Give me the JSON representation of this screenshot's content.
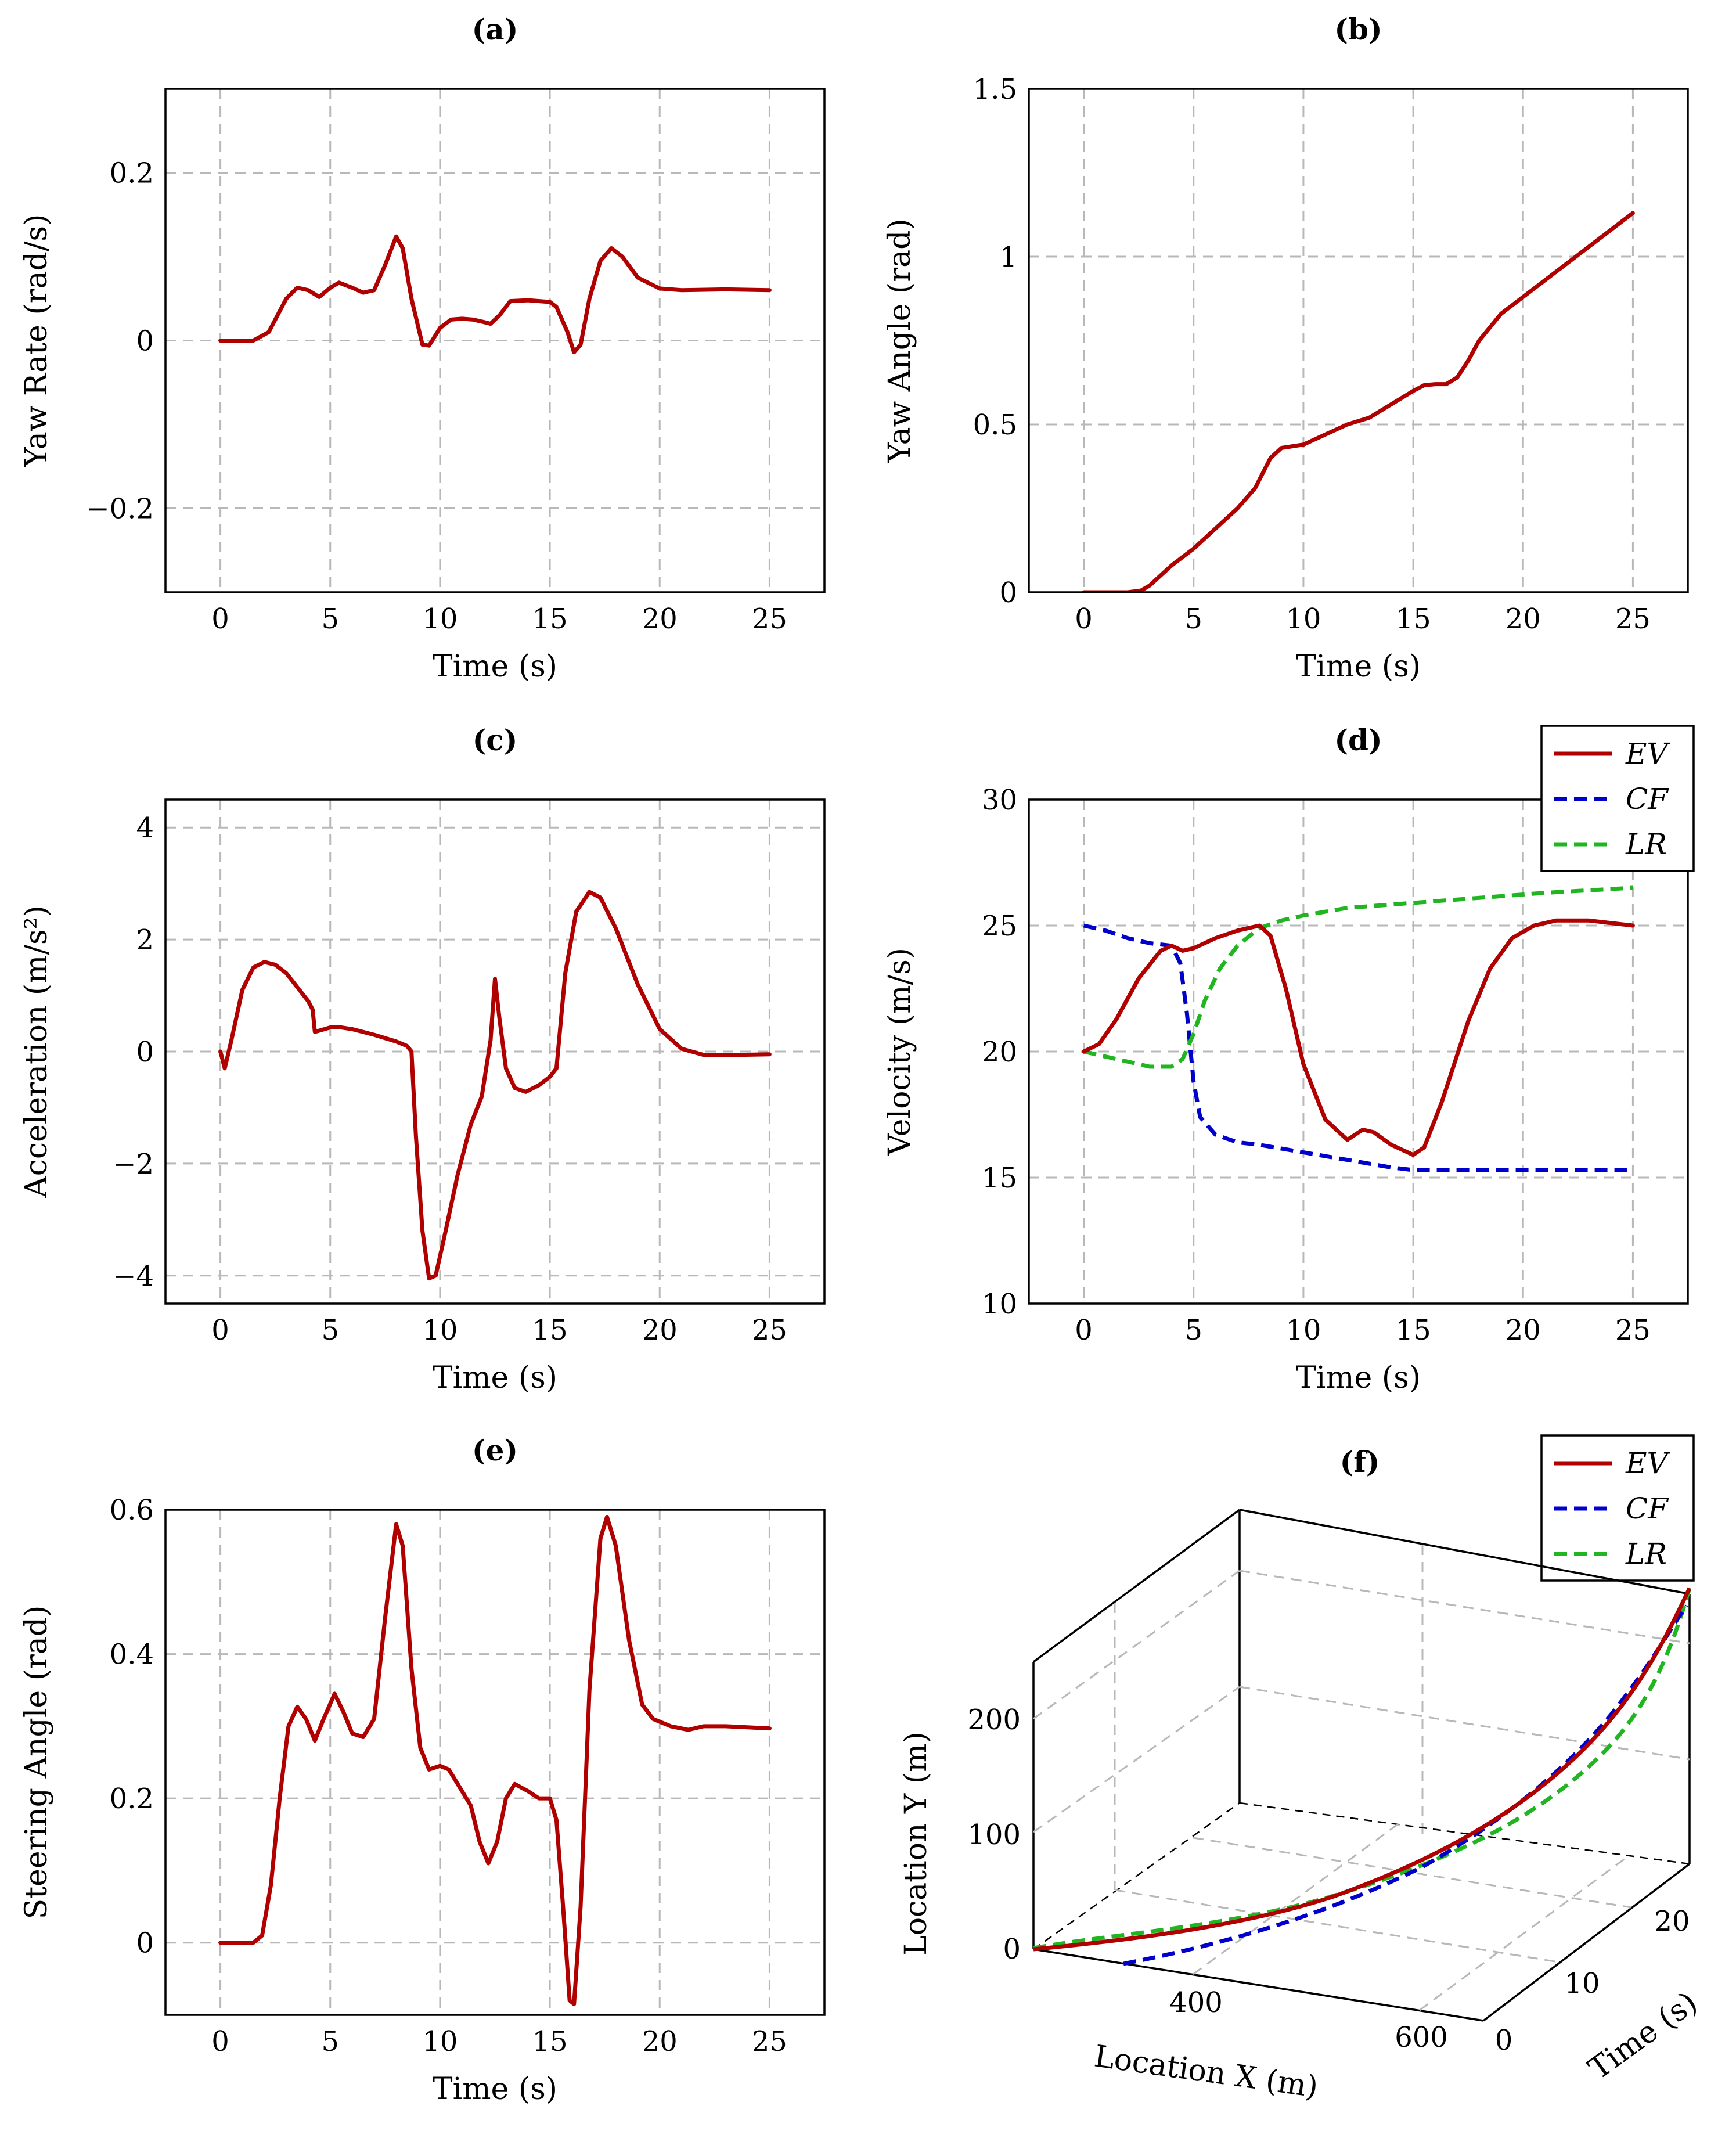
{
  "colors": {
    "EV": "#b00000",
    "CF": "#0000cc",
    "LR": "#22b522"
  },
  "chart_data": [
    {
      "id": "a",
      "type": "line",
      "title": "(a)",
      "xlabel": "Time (s)",
      "ylabel": "Yaw Rate (rad/s)",
      "xlim": [
        -2.5,
        27.5
      ],
      "ylim": [
        -0.3,
        0.3
      ],
      "xticks": [
        0,
        5,
        10,
        15,
        20,
        25
      ],
      "xtick_labels": [
        "0",
        "5",
        "10",
        "15",
        "20",
        "25"
      ],
      "yticks": [
        -0.2,
        0,
        0.2
      ],
      "ytick_labels": [
        "−0.2",
        "0",
        "0.2"
      ],
      "series": [
        {
          "key": "EV",
          "points": [
            [
              0,
              0
            ],
            [
              1.5,
              0
            ],
            [
              2.2,
              0.01
            ],
            [
              3,
              0.05
            ],
            [
              3.5,
              0.063
            ],
            [
              4,
              0.06
            ],
            [
              4.5,
              0.052
            ],
            [
              5,
              0.063
            ],
            [
              5.4,
              0.069
            ],
            [
              6,
              0.063
            ],
            [
              6.5,
              0.057
            ],
            [
              7,
              0.06
            ],
            [
              7.5,
              0.09
            ],
            [
              8,
              0.124
            ],
            [
              8.3,
              0.11
            ],
            [
              8.7,
              0.05
            ],
            [
              9.2,
              -0.005
            ],
            [
              9.5,
              -0.006
            ],
            [
              10,
              0.015
            ],
            [
              10.5,
              0.025
            ],
            [
              11,
              0.026
            ],
            [
              11.5,
              0.025
            ],
            [
              12,
              0.022
            ],
            [
              12.3,
              0.02
            ],
            [
              12.7,
              0.03
            ],
            [
              13.2,
              0.047
            ],
            [
              14,
              0.048
            ],
            [
              15,
              0.046
            ],
            [
              15.3,
              0.04
            ],
            [
              15.8,
              0.01
            ],
            [
              16.1,
              -0.014
            ],
            [
              16.4,
              -0.005
            ],
            [
              16.8,
              0.05
            ],
            [
              17.3,
              0.095
            ],
            [
              17.8,
              0.11
            ],
            [
              18.3,
              0.1
            ],
            [
              19,
              0.075
            ],
            [
              20,
              0.062
            ],
            [
              21,
              0.06
            ],
            [
              23,
              0.061
            ],
            [
              25,
              0.06
            ]
          ]
        }
      ]
    },
    {
      "id": "b",
      "type": "line",
      "title": "(b)",
      "xlabel": "Time (s)",
      "ylabel": "Yaw Angle (rad)",
      "xlim": [
        -2.5,
        27.5
      ],
      "ylim": [
        0,
        1.5
      ],
      "xticks": [
        0,
        5,
        10,
        15,
        20,
        25
      ],
      "xtick_labels": [
        "0",
        "5",
        "10",
        "15",
        "20",
        "25"
      ],
      "yticks": [
        0,
        0.5,
        1,
        1.5
      ],
      "ytick_labels": [
        "0",
        "0.5",
        "1",
        "1.5"
      ],
      "series": [
        {
          "key": "EV",
          "points": [
            [
              0,
              0
            ],
            [
              2,
              0
            ],
            [
              2.6,
              0.005
            ],
            [
              3,
              0.02
            ],
            [
              3.5,
              0.05
            ],
            [
              4,
              0.08
            ],
            [
              5,
              0.13
            ],
            [
              6,
              0.19
            ],
            [
              7,
              0.25
            ],
            [
              7.8,
              0.31
            ],
            [
              8.5,
              0.4
            ],
            [
              9,
              0.43
            ],
            [
              10,
              0.44
            ],
            [
              11,
              0.47
            ],
            [
              12,
              0.5
            ],
            [
              13,
              0.52
            ],
            [
              14,
              0.56
            ],
            [
              15,
              0.6
            ],
            [
              15.5,
              0.617
            ],
            [
              16,
              0.62
            ],
            [
              16.5,
              0.62
            ],
            [
              17,
              0.64
            ],
            [
              17.5,
              0.69
            ],
            [
              18,
              0.75
            ],
            [
              19,
              0.83
            ],
            [
              20,
              0.88
            ],
            [
              22,
              0.98
            ],
            [
              24,
              1.08
            ],
            [
              25,
              1.13
            ]
          ]
        }
      ]
    },
    {
      "id": "c",
      "type": "line",
      "title": "(c)",
      "xlabel": "Time (s)",
      "ylabel": "Acceleration (m/s²)",
      "xlim": [
        -2.5,
        27.5
      ],
      "ylim": [
        -4.5,
        4.5
      ],
      "xticks": [
        0,
        5,
        10,
        15,
        20,
        25
      ],
      "xtick_labels": [
        "0",
        "5",
        "10",
        "15",
        "20",
        "25"
      ],
      "yticks": [
        -4,
        -2,
        0,
        2,
        4
      ],
      "ytick_labels": [
        "−4",
        "−2",
        "0",
        "2",
        "4"
      ],
      "series": [
        {
          "key": "EV",
          "points": [
            [
              0,
              0
            ],
            [
              0.2,
              -0.3
            ],
            [
              0.5,
              0.2
            ],
            [
              1,
              1.1
            ],
            [
              1.5,
              1.5
            ],
            [
              2,
              1.6
            ],
            [
              2.5,
              1.55
            ],
            [
              3,
              1.4
            ],
            [
              3.5,
              1.15
            ],
            [
              4,
              0.9
            ],
            [
              4.2,
              0.75
            ],
            [
              4.3,
              0.35
            ],
            [
              5,
              0.43
            ],
            [
              5.5,
              0.43
            ],
            [
              6,
              0.4
            ],
            [
              7,
              0.3
            ],
            [
              8,
              0.18
            ],
            [
              8.5,
              0.1
            ],
            [
              8.7,
              0
            ],
            [
              8.9,
              -1.5
            ],
            [
              9.2,
              -3.2
            ],
            [
              9.5,
              -4.05
            ],
            [
              9.8,
              -4.0
            ],
            [
              10.2,
              -3.3
            ],
            [
              10.8,
              -2.2
            ],
            [
              11.4,
              -1.3
            ],
            [
              11.9,
              -0.8
            ],
            [
              12.3,
              0.2
            ],
            [
              12.5,
              1.3
            ],
            [
              12.7,
              0.6
            ],
            [
              13,
              -0.3
            ],
            [
              13.4,
              -0.65
            ],
            [
              13.9,
              -0.72
            ],
            [
              14.5,
              -0.6
            ],
            [
              15,
              -0.45
            ],
            [
              15.3,
              -0.3
            ],
            [
              15.7,
              1.4
            ],
            [
              16.2,
              2.5
            ],
            [
              16.8,
              2.85
            ],
            [
              17.3,
              2.75
            ],
            [
              18,
              2.2
            ],
            [
              19,
              1.2
            ],
            [
              20,
              0.4
            ],
            [
              21,
              0.05
            ],
            [
              22,
              -0.06
            ],
            [
              23.5,
              -0.06
            ],
            [
              25,
              -0.05
            ]
          ]
        }
      ]
    },
    {
      "id": "d",
      "type": "line",
      "title": "(d)",
      "xlabel": "Time (s)",
      "ylabel": "Velocity (m/s)",
      "xlim": [
        -2.5,
        27.5
      ],
      "ylim": [
        10,
        30
      ],
      "xticks": [
        0,
        5,
        10,
        15,
        20,
        25
      ],
      "xtick_labels": [
        "0",
        "5",
        "10",
        "15",
        "20",
        "25"
      ],
      "yticks": [
        10,
        15,
        20,
        25,
        30
      ],
      "ytick_labels": [
        "10",
        "15",
        "20",
        "25",
        "30"
      ],
      "legend": [
        "EV",
        "CF",
        "LR"
      ],
      "series": [
        {
          "key": "EV",
          "points": [
            [
              0,
              20
            ],
            [
              0.7,
              20.3
            ],
            [
              1.5,
              21.3
            ],
            [
              2.5,
              22.9
            ],
            [
              3.5,
              24.0
            ],
            [
              4,
              24.2
            ],
            [
              4.5,
              24.0
            ],
            [
              5,
              24.1
            ],
            [
              6,
              24.5
            ],
            [
              7,
              24.8
            ],
            [
              8,
              25.0
            ],
            [
              8.5,
              24.6
            ],
            [
              9.2,
              22.5
            ],
            [
              10,
              19.5
            ],
            [
              11,
              17.3
            ],
            [
              12,
              16.5
            ],
            [
              12.7,
              16.9
            ],
            [
              13.2,
              16.8
            ],
            [
              14,
              16.3
            ],
            [
              15,
              15.9
            ],
            [
              15.5,
              16.2
            ],
            [
              16.3,
              18.0
            ],
            [
              17.5,
              21.2
            ],
            [
              18.5,
              23.3
            ],
            [
              19.5,
              24.5
            ],
            [
              20.5,
              25.0
            ],
            [
              21.5,
              25.2
            ],
            [
              23,
              25.2
            ],
            [
              25,
              25.0
            ]
          ]
        },
        {
          "key": "CF",
          "points": [
            [
              0,
              25
            ],
            [
              1,
              24.8
            ],
            [
              2,
              24.5
            ],
            [
              3,
              24.3
            ],
            [
              4,
              24.2
            ],
            [
              4.4,
              23.5
            ],
            [
              4.7,
              21.5
            ],
            [
              5,
              18.8
            ],
            [
              5.3,
              17.4
            ],
            [
              6,
              16.7
            ],
            [
              7,
              16.4
            ],
            [
              8,
              16.3
            ],
            [
              10,
              16.0
            ],
            [
              12,
              15.7
            ],
            [
              14,
              15.4
            ],
            [
              15,
              15.3
            ],
            [
              17,
              15.3
            ],
            [
              20,
              15.3
            ],
            [
              25,
              15.3
            ]
          ]
        },
        {
          "key": "LR",
          "points": [
            [
              0,
              20
            ],
            [
              1,
              19.8
            ],
            [
              2,
              19.6
            ],
            [
              3,
              19.4
            ],
            [
              4,
              19.4
            ],
            [
              4.5,
              19.7
            ],
            [
              5,
              20.7
            ],
            [
              5.5,
              22.0
            ],
            [
              6.2,
              23.3
            ],
            [
              7,
              24.2
            ],
            [
              8,
              24.9
            ],
            [
              9,
              25.2
            ],
            [
              10,
              25.4
            ],
            [
              12,
              25.7
            ],
            [
              15,
              25.9
            ],
            [
              18,
              26.1
            ],
            [
              21,
              26.3
            ],
            [
              25,
              26.5
            ]
          ]
        }
      ]
    },
    {
      "id": "e",
      "type": "line",
      "title": "(e)",
      "xlabel": "Time (s)",
      "ylabel": "Steering Angle (rad)",
      "xlim": [
        -2.5,
        27.5
      ],
      "ylim": [
        -0.1,
        0.6
      ],
      "xticks": [
        0,
        5,
        10,
        15,
        20,
        25
      ],
      "xtick_labels": [
        "0",
        "5",
        "10",
        "15",
        "20",
        "25"
      ],
      "yticks": [
        0,
        0.2,
        0.4,
        0.6
      ],
      "ytick_labels": [
        "0",
        "0.2",
        "0.4",
        "0.6"
      ],
      "series": [
        {
          "key": "EV",
          "points": [
            [
              0,
              0
            ],
            [
              1.5,
              0
            ],
            [
              1.9,
              0.01
            ],
            [
              2.3,
              0.08
            ],
            [
              2.7,
              0.2
            ],
            [
              3.1,
              0.3
            ],
            [
              3.5,
              0.327
            ],
            [
              3.9,
              0.31
            ],
            [
              4.3,
              0.28
            ],
            [
              4.7,
              0.31
            ],
            [
              5.2,
              0.345
            ],
            [
              5.6,
              0.32
            ],
            [
              6,
              0.29
            ],
            [
              6.5,
              0.285
            ],
            [
              7,
              0.31
            ],
            [
              7.5,
              0.45
            ],
            [
              8,
              0.58
            ],
            [
              8.3,
              0.55
            ],
            [
              8.7,
              0.38
            ],
            [
              9.1,
              0.27
            ],
            [
              9.5,
              0.24
            ],
            [
              10,
              0.245
            ],
            [
              10.4,
              0.24
            ],
            [
              10.9,
              0.215
            ],
            [
              11.4,
              0.19
            ],
            [
              11.8,
              0.14
            ],
            [
              12.2,
              0.11
            ],
            [
              12.6,
              0.14
            ],
            [
              13,
              0.2
            ],
            [
              13.4,
              0.22
            ],
            [
              14,
              0.21
            ],
            [
              14.5,
              0.2
            ],
            [
              15,
              0.2
            ],
            [
              15.3,
              0.17
            ],
            [
              15.6,
              0.05
            ],
            [
              15.9,
              -0.08
            ],
            [
              16.1,
              -0.085
            ],
            [
              16.4,
              0.05
            ],
            [
              16.8,
              0.35
            ],
            [
              17.3,
              0.56
            ],
            [
              17.6,
              0.59
            ],
            [
              18,
              0.55
            ],
            [
              18.6,
              0.42
            ],
            [
              19.2,
              0.33
            ],
            [
              19.7,
              0.31
            ],
            [
              20.5,
              0.3
            ],
            [
              21.3,
              0.295
            ],
            [
              22,
              0.3
            ],
            [
              23,
              0.3
            ],
            [
              25,
              0.297
            ]
          ]
        }
      ]
    },
    {
      "id": "f",
      "type": "line3d",
      "title": "(f)",
      "xlabel": "Location X (m)",
      "ylabel": "Location Y (m)",
      "zlabel": "Time (s)",
      "xtick_labels": [
        "400",
        "600"
      ],
      "ytick_labels": [
        "0",
        "100",
        "200"
      ],
      "ztick_labels": [
        "0",
        "10",
        "20"
      ],
      "legend": [
        "EV",
        "CF",
        "LR"
      ]
    }
  ]
}
